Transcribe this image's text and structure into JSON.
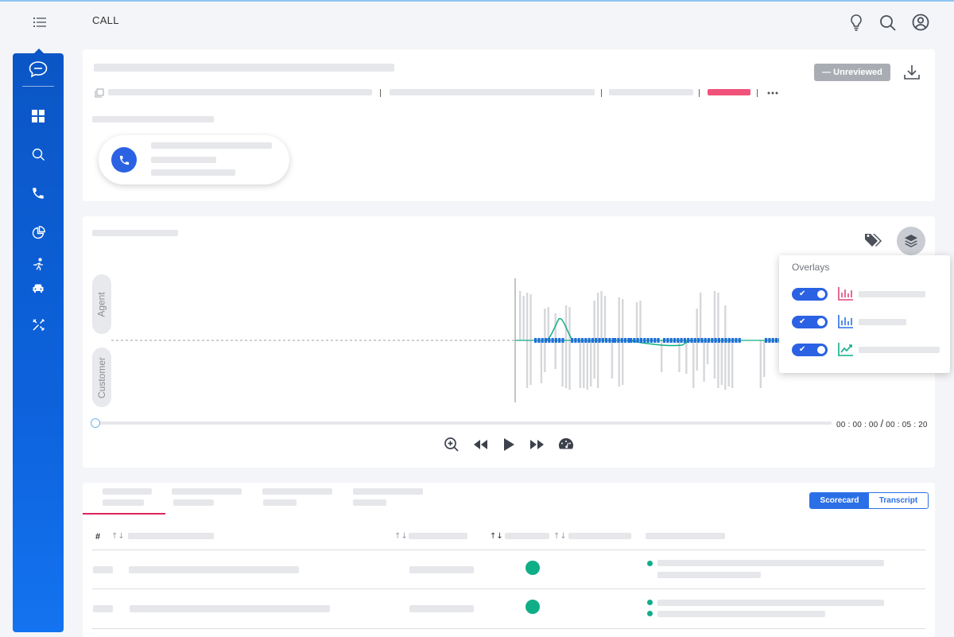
{
  "page": {
    "title": "CALL"
  },
  "header_icons": [
    "lightbulb-icon",
    "search-icon",
    "user-account-icon"
  ],
  "sidebar": {
    "items": [
      {
        "name": "chat-icon"
      },
      {
        "name": "dashboard-icon"
      },
      {
        "name": "search-icon"
      },
      {
        "name": "phone-icon"
      },
      {
        "name": "pie-chart-icon"
      },
      {
        "name": "running-icon"
      },
      {
        "name": "car-icon"
      },
      {
        "name": "tools-icon"
      }
    ]
  },
  "call_info": {
    "status_label": "— Unreviewed",
    "status_color": "#a9adb3",
    "tag_color": "#f0527a"
  },
  "waveform": {
    "agent_label": "Agent",
    "customer_label": "Customer",
    "time_current": "00 : 00 : 00",
    "time_separator": "/",
    "time_total": "00 : 05 : 20",
    "progress": 0
  },
  "overlays": {
    "title": "Overlays",
    "items": [
      {
        "icon": "bar-chart-icon",
        "color": "#e0457b",
        "enabled": true
      },
      {
        "icon": "bar-chart-icon",
        "color": "#2b6fe6",
        "enabled": true
      },
      {
        "icon": "trend-chart-icon",
        "color": "#0fae87",
        "enabled": true
      }
    ]
  },
  "results": {
    "view_toggle": {
      "scorecard_label": "Scorecard",
      "transcript_label": "Transcript",
      "active": "Scorecard"
    },
    "table": {
      "hash_header": "#"
    },
    "status_color": "#0fae87"
  }
}
